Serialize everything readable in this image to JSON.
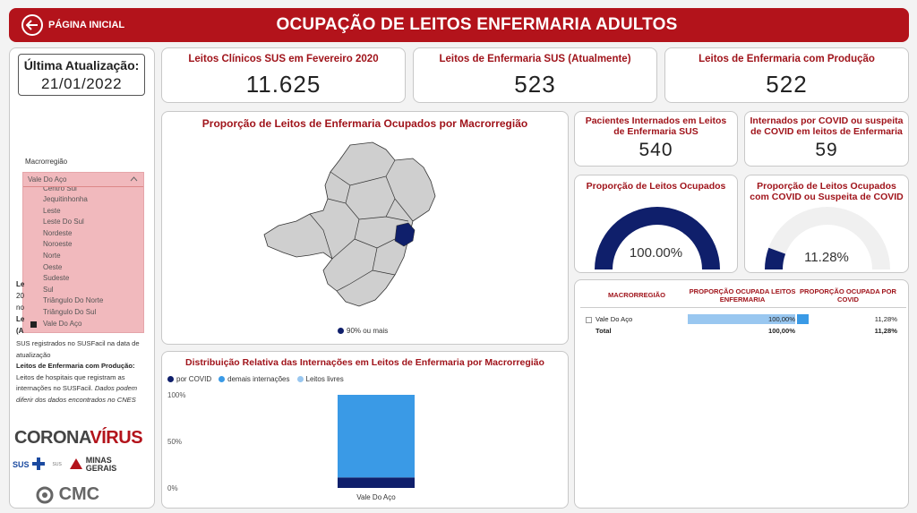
{
  "header": {
    "home_label": "PÁGINA INICIAL",
    "title": "OCUPAÇÃO DE LEITOS ENFERMARIA ADULTOS"
  },
  "update": {
    "label": "Última Atualização:",
    "date": "21/01/2022"
  },
  "kpis": [
    {
      "title": "Leitos Clínicos SUS em Fevereiro 2020",
      "value": "11.625"
    },
    {
      "title": "Leitos de Enfermaria SUS (Atualmente)",
      "value": "523"
    },
    {
      "title": "Leitos de Enfermaria com Produção",
      "value": "522"
    }
  ],
  "small_kpis": [
    {
      "title": "Pacientes Internados em Leitos de Enfermaria SUS",
      "value": "540"
    },
    {
      "title": "Internados por COVID ou suspeita de COVID em leitos de Enfermaria",
      "value": "59"
    }
  ],
  "gauges": [
    {
      "title": "Proporção de Leitos Ocupados",
      "value_label": "100.00%",
      "value": 1.0,
      "color": "#0f1f6b"
    },
    {
      "title": "Proporção de Leitos Ocupados com COVID ou Suspeita de COVID",
      "value_label": "11.28%",
      "value": 0.1128,
      "color": "#0f1f6b"
    }
  ],
  "map": {
    "title": "Proporção de Leitos de Enfermaria Ocupados por Macrorregião",
    "legend": "90% ou mais",
    "highlight_color": "#0f1f6b"
  },
  "slicer": {
    "label": "Macrorregião",
    "selected": "Vale Do Aço",
    "items": [
      "Centro Sul",
      "Jequitinhonha",
      "Leste",
      "Leste Do Sul",
      "Nordeste",
      "Noroeste",
      "Norte",
      "Oeste",
      "Sudeste",
      "Sul",
      "Triângulo Do Norte",
      "Triângulo Do Sul",
      "Vale Do Aço"
    ]
  },
  "notes": {
    "line1": "SUS registrados no SUSFacil na data de",
    "line2": "atualização",
    "heading": "Leitos de Enfermaria com Produção:",
    "line3": "Leitos de hospitais que registram as",
    "line4": "internações no SUSFacil.",
    "italic": "Dados podem",
    "line5": "diferir dos dados encontrados no CNES",
    "frag_le": "Le",
    "frag_20": "20",
    "frag_no": "no",
    "frag_le2": "Le",
    "frag_a": "(A"
  },
  "logos": {
    "corona_a": "CORONA",
    "corona_b": "VÍRUS",
    "sus": "SUS",
    "sus_sub": "SUS",
    "minas": "MINAS GERAIS",
    "cmc": "CMC"
  },
  "chart_data": {
    "type": "bar",
    "title": "Distribuição Relativa das Internações em Leitos de Enfermaria por Macrorregião",
    "categories": [
      "Vale Do Aço"
    ],
    "series": [
      {
        "name": "por COVID",
        "values": [
          11.28
        ],
        "color": "#0f1f6b"
      },
      {
        "name": "demais internações",
        "values": [
          88.72
        ],
        "color": "#3a9ae6"
      },
      {
        "name": "Leitos livres",
        "values": [
          0
        ],
        "color": "#99c7f0"
      }
    ],
    "ylim": [
      0,
      100
    ],
    "yticks": [
      "100%",
      "50%",
      "0%"
    ],
    "stacked": true
  },
  "table": {
    "headers": [
      "MACRORREGIÃO",
      "PROPORÇÃO OCUPADA LEITOS ENFERMARIA",
      "PROPORÇÃO OCUPADA POR COVID"
    ],
    "rows": [
      {
        "name": "Vale Do Aço",
        "p1": "100,00%",
        "p2": "11,28%",
        "v1": 1.0,
        "v2": 0.1128
      }
    ],
    "total": {
      "name": "Total",
      "p1": "100,00%",
      "p2": "11,28%"
    }
  }
}
